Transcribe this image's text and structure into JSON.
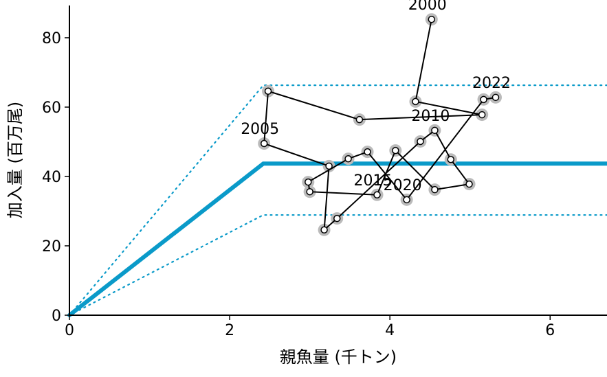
{
  "chart_data": {
    "type": "scatter",
    "xlabel": "親魚量 (千トン)",
    "ylabel": "加入量 (百万尾)",
    "xlim": [
      0,
      6.71
    ],
    "ylim": [
      0,
      89.3
    ],
    "xticks": [
      0,
      2,
      4,
      6
    ],
    "yticks": [
      0,
      20,
      40,
      60,
      80
    ],
    "reference_lines": [
      {
        "color": "#0a9ac9",
        "style": "solid",
        "x": [
          0,
          2.42,
          6.71
        ],
        "values": [
          0,
          43.7,
          43.7
        ]
      },
      {
        "color": "#0a9ac9",
        "style": "dotted",
        "x": [
          0,
          2.42,
          6.71
        ],
        "values": [
          0,
          66.3,
          66.3
        ]
      },
      {
        "color": "#0a9ac9",
        "style": "dotted",
        "x": [
          0,
          2.42,
          6.71
        ],
        "values": [
          0,
          28.9,
          28.9
        ]
      }
    ],
    "trajectory": {
      "color": "#000000",
      "x": [
        4.52,
        4.32,
        5.15,
        3.62,
        2.48,
        2.43,
        3.24,
        3.18,
        3.34,
        4.38,
        4.56,
        4.76,
        4.99,
        4.56,
        4.07,
        3.84,
        3.0,
        2.98,
        3.48,
        3.72,
        4.21,
        5.17,
        5.32
      ],
      "values": [
        85.3,
        61.6,
        57.8,
        56.4,
        64.6,
        49.5,
        43.0,
        24.6,
        27.9,
        50.1,
        53.3,
        44.9,
        37.8,
        36.2,
        47.5,
        34.7,
        35.6,
        38.4,
        45.1,
        47.1,
        33.3,
        62.2,
        62.8
      ],
      "point_labels": [
        "2000",
        null,
        null,
        null,
        null,
        "2005",
        null,
        null,
        null,
        null,
        "2010",
        null,
        null,
        null,
        null,
        "2015",
        null,
        null,
        null,
        null,
        "2020",
        null,
        "2022"
      ]
    }
  }
}
